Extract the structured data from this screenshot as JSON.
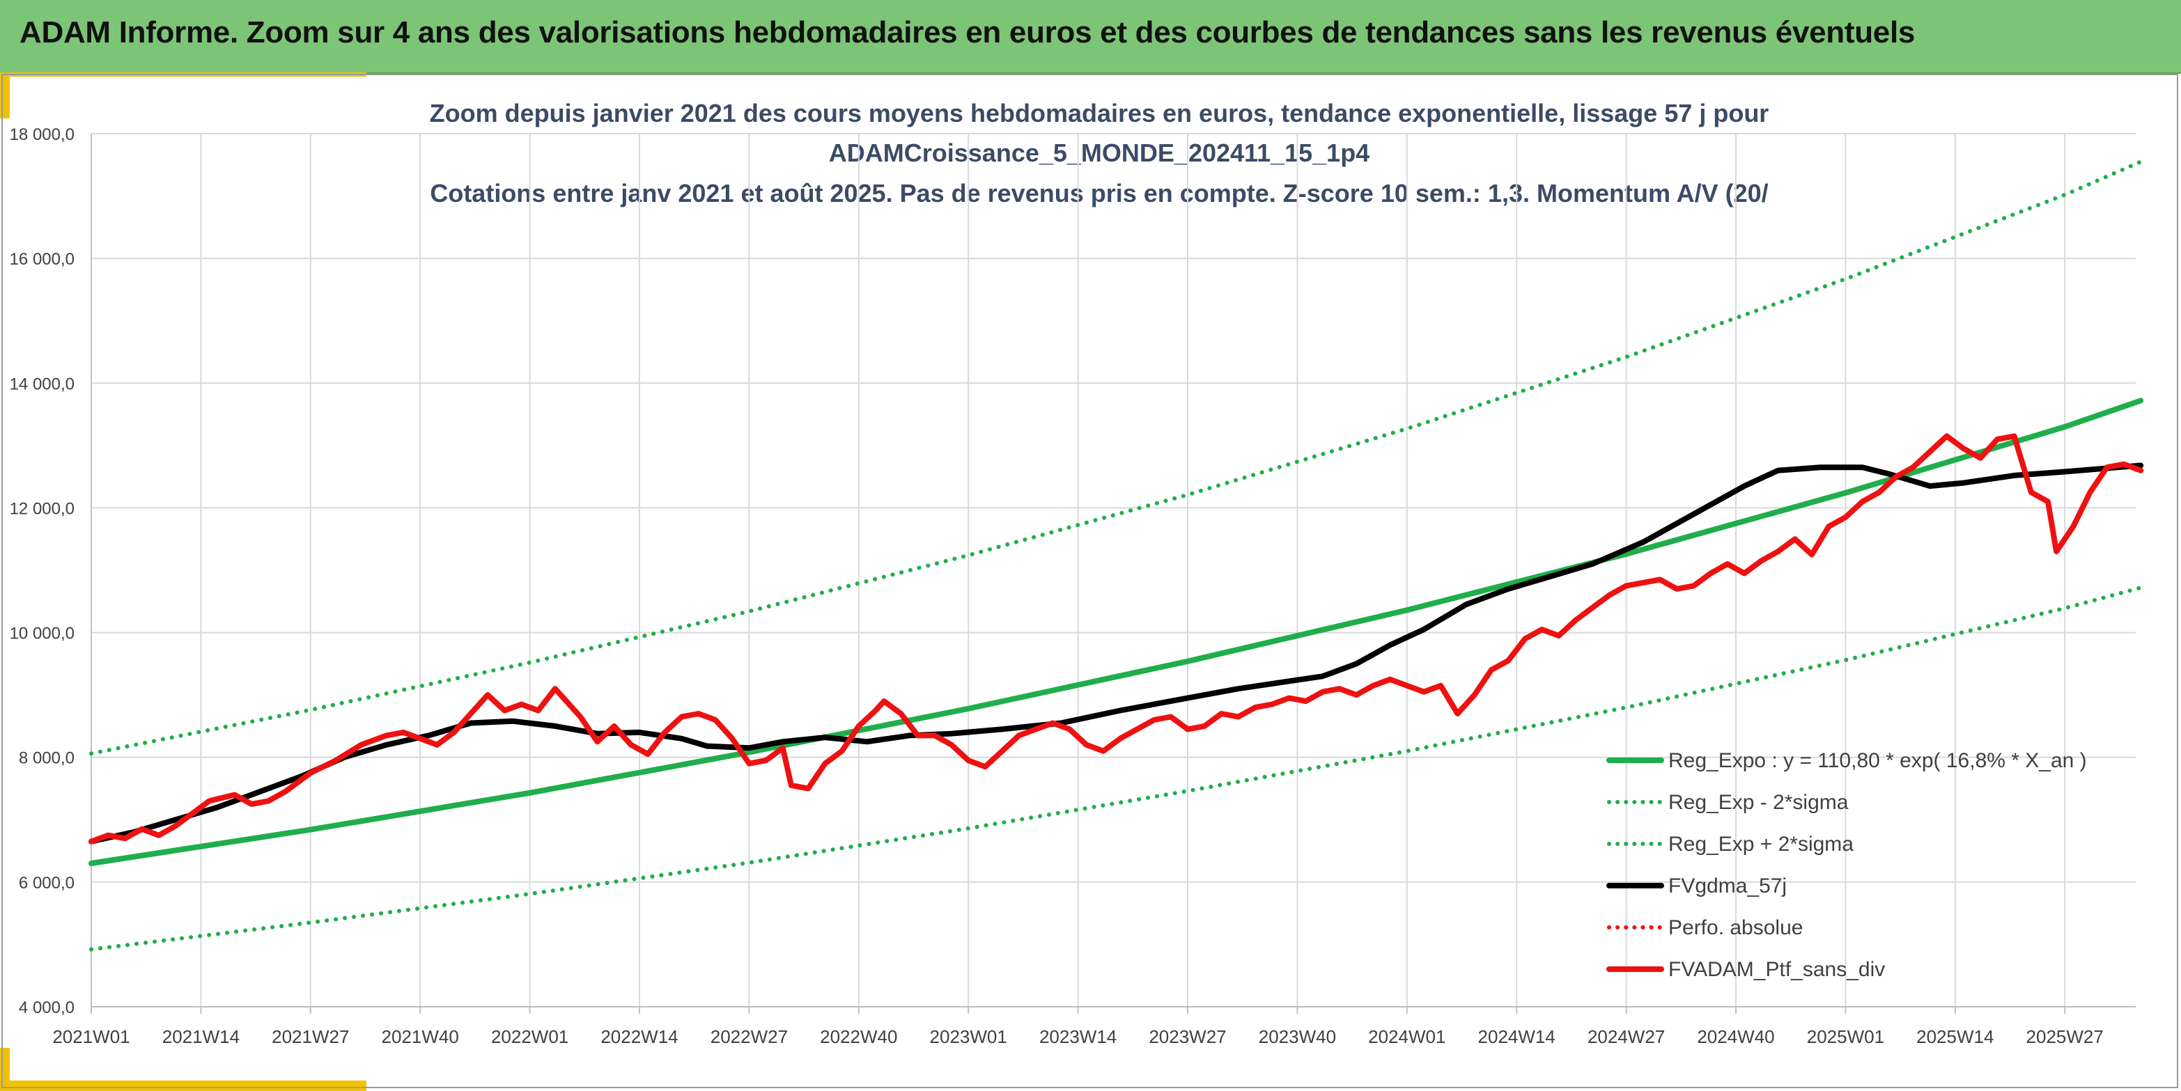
{
  "header": {
    "title": "ADAM Informe. Zoom sur 4 ans des valorisations hebdomadaires en euros et des courbes de tendances sans les revenus éventuels"
  },
  "colors": {
    "header_bg": "#7cc576",
    "accent_yellow": "#f2c200",
    "trend_green": "#1fae4b",
    "series_black": "#000000",
    "series_red": "#ee1111"
  },
  "chart_data": {
    "type": "line",
    "title_lines": [
      "Zoom depuis janvier 2021 des cours moyens hebdomadaires en euros, tendance exponentielle, lissage 57 j pour",
      "ADAMCroissance_5_MONDE_202411_15_1p4",
      "Cotations entre janv 2021 et août 2025. Pas de revenus pris en compte. Z-score 10 sem.: 1,3. Momentum A/V (20/"
    ],
    "xlabel": "",
    "ylabel": "",
    "ylim": [
      4000,
      18000
    ],
    "y_ticks": [
      4000,
      6000,
      8000,
      10000,
      12000,
      14000,
      16000,
      18000
    ],
    "y_tick_labels": [
      "4 000,0",
      "6 000,0",
      "8 000,0",
      "10 000,0",
      "12 000,0",
      "14 000,0",
      "16 000,0",
      "18 000,0"
    ],
    "x_range_weeks": [
      0,
      188
    ],
    "x_ticks": [
      0,
      13,
      26,
      39,
      52,
      65,
      78,
      91,
      104,
      117,
      130,
      143,
      156,
      169,
      182,
      195,
      208,
      221,
      234
    ],
    "x_tick_labels": [
      "2021W01",
      "2021W14",
      "2021W27",
      "2021W40",
      "2022W01",
      "2022W14",
      "2022W27",
      "2022W40",
      "2023W01",
      "2023W14",
      "2023W27",
      "2023W40",
      "2024W01",
      "2024W14",
      "2024W27",
      "2024W40",
      "2025W01",
      "2025W14",
      "2025W27"
    ],
    "grid": true,
    "legend_position": "bottom-right",
    "series": [
      {
        "name": "Reg_Expo : y = 110,80 * exp( 16,8% *  X_an )",
        "color": "#1fae4b",
        "style": "solid",
        "points": [
          [
            0,
            6300
          ],
          [
            26,
            6840
          ],
          [
            52,
            7430
          ],
          [
            78,
            8080
          ],
          [
            104,
            8780
          ],
          [
            130,
            9540
          ],
          [
            156,
            10360
          ],
          [
            182,
            11260
          ],
          [
            208,
            12240
          ],
          [
            234,
            13300
          ],
          [
            243,
            13720
          ]
        ]
      },
      {
        "name": "Reg_Exp - 2*sigma",
        "color": "#1fae4b",
        "style": "dotted",
        "points": [
          [
            0,
            4920
          ],
          [
            26,
            5350
          ],
          [
            52,
            5810
          ],
          [
            78,
            6310
          ],
          [
            104,
            6860
          ],
          [
            130,
            7460
          ],
          [
            156,
            8100
          ],
          [
            182,
            8800
          ],
          [
            208,
            9560
          ],
          [
            234,
            10390
          ],
          [
            243,
            10720
          ]
        ]
      },
      {
        "name": "Reg_Exp + 2*sigma",
        "color": "#1fae4b",
        "style": "dotted",
        "points": [
          [
            0,
            8060
          ],
          [
            26,
            8760
          ],
          [
            52,
            9520
          ],
          [
            78,
            10340
          ],
          [
            104,
            11240
          ],
          [
            130,
            12210
          ],
          [
            156,
            13270
          ],
          [
            182,
            14420
          ],
          [
            208,
            15670
          ],
          [
            234,
            17020
          ],
          [
            243,
            17550
          ]
        ]
      },
      {
        "name": "FVgdma_57j",
        "color": "#000000",
        "style": "solid",
        "points": [
          [
            0,
            6650
          ],
          [
            5,
            6800
          ],
          [
            10,
            7000
          ],
          [
            15,
            7200
          ],
          [
            20,
            7450
          ],
          [
            25,
            7700
          ],
          [
            30,
            8000
          ],
          [
            35,
            8200
          ],
          [
            40,
            8350
          ],
          [
            45,
            8550
          ],
          [
            50,
            8580
          ],
          [
            55,
            8500
          ],
          [
            60,
            8380
          ],
          [
            65,
            8400
          ],
          [
            70,
            8300
          ],
          [
            73,
            8180
          ],
          [
            78,
            8150
          ],
          [
            82,
            8250
          ],
          [
            87,
            8320
          ],
          [
            92,
            8250
          ],
          [
            97,
            8350
          ],
          [
            102,
            8380
          ],
          [
            108,
            8450
          ],
          [
            115,
            8550
          ],
          [
            122,
            8750
          ],
          [
            130,
            8950
          ],
          [
            136,
            9100
          ],
          [
            142,
            9220
          ],
          [
            146,
            9300
          ],
          [
            150,
            9500
          ],
          [
            154,
            9800
          ],
          [
            158,
            10050
          ],
          [
            163,
            10450
          ],
          [
            168,
            10700
          ],
          [
            173,
            10900
          ],
          [
            178,
            11100
          ],
          [
            184,
            11450
          ],
          [
            190,
            11900
          ],
          [
            196,
            12350
          ],
          [
            200,
            12600
          ],
          [
            205,
            12650
          ],
          [
            210,
            12650
          ],
          [
            213,
            12550
          ],
          [
            218,
            12350
          ],
          [
            222,
            12400
          ],
          [
            228,
            12520
          ],
          [
            234,
            12580
          ],
          [
            243,
            12680
          ]
        ]
      },
      {
        "name": "Perfo. absolue",
        "color": "#ee1111",
        "style": "dotted",
        "points": []
      },
      {
        "name": "FVADAM_Ptf_sans_div",
        "color": "#ee1111",
        "style": "solid",
        "points": [
          [
            0,
            6650
          ],
          [
            2,
            6750
          ],
          [
            4,
            6700
          ],
          [
            6,
            6850
          ],
          [
            8,
            6750
          ],
          [
            10,
            6900
          ],
          [
            12,
            7100
          ],
          [
            14,
            7300
          ],
          [
            17,
            7400
          ],
          [
            19,
            7250
          ],
          [
            21,
            7300
          ],
          [
            23,
            7450
          ],
          [
            26,
            7750
          ],
          [
            29,
            7950
          ],
          [
            32,
            8200
          ],
          [
            35,
            8350
          ],
          [
            37,
            8400
          ],
          [
            39,
            8300
          ],
          [
            41,
            8200
          ],
          [
            43,
            8400
          ],
          [
            45,
            8700
          ],
          [
            47,
            9000
          ],
          [
            49,
            8750
          ],
          [
            51,
            8850
          ],
          [
            53,
            8750
          ],
          [
            55,
            9100
          ],
          [
            56,
            8950
          ],
          [
            58,
            8650
          ],
          [
            60,
            8250
          ],
          [
            62,
            8500
          ],
          [
            64,
            8200
          ],
          [
            66,
            8050
          ],
          [
            68,
            8400
          ],
          [
            70,
            8650
          ],
          [
            72,
            8700
          ],
          [
            74,
            8600
          ],
          [
            76,
            8300
          ],
          [
            78,
            7900
          ],
          [
            80,
            7950
          ],
          [
            82,
            8150
          ],
          [
            83,
            7550
          ],
          [
            85,
            7500
          ],
          [
            87,
            7900
          ],
          [
            89,
            8100
          ],
          [
            91,
            8500
          ],
          [
            93,
            8750
          ],
          [
            94,
            8900
          ],
          [
            96,
            8700
          ],
          [
            98,
            8350
          ],
          [
            100,
            8350
          ],
          [
            102,
            8200
          ],
          [
            104,
            7950
          ],
          [
            106,
            7850
          ],
          [
            108,
            8100
          ],
          [
            110,
            8350
          ],
          [
            112,
            8450
          ],
          [
            114,
            8550
          ],
          [
            116,
            8450
          ],
          [
            118,
            8200
          ],
          [
            120,
            8100
          ],
          [
            122,
            8300
          ],
          [
            124,
            8450
          ],
          [
            126,
            8600
          ],
          [
            128,
            8650
          ],
          [
            130,
            8450
          ],
          [
            132,
            8500
          ],
          [
            134,
            8700
          ],
          [
            136,
            8650
          ],
          [
            138,
            8800
          ],
          [
            140,
            8850
          ],
          [
            142,
            8950
          ],
          [
            144,
            8900
          ],
          [
            146,
            9050
          ],
          [
            148,
            9100
          ],
          [
            150,
            9000
          ],
          [
            152,
            9150
          ],
          [
            154,
            9250
          ],
          [
            156,
            9150
          ],
          [
            158,
            9050
          ],
          [
            160,
            9150
          ],
          [
            162,
            8700
          ],
          [
            164,
            9000
          ],
          [
            166,
            9400
          ],
          [
            168,
            9550
          ],
          [
            170,
            9900
          ],
          [
            172,
            10050
          ],
          [
            174,
            9950
          ],
          [
            176,
            10200
          ],
          [
            178,
            10400
          ],
          [
            180,
            10600
          ],
          [
            182,
            10750
          ],
          [
            184,
            10800
          ],
          [
            186,
            10850
          ],
          [
            188,
            10700
          ],
          [
            190,
            10750
          ],
          [
            192,
            10950
          ],
          [
            194,
            11100
          ],
          [
            196,
            10950
          ],
          [
            198,
            11150
          ],
          [
            200,
            11300
          ],
          [
            202,
            11500
          ],
          [
            204,
            11250
          ],
          [
            206,
            11700
          ],
          [
            208,
            11850
          ],
          [
            210,
            12100
          ],
          [
            212,
            12250
          ],
          [
            214,
            12500
          ],
          [
            216,
            12650
          ],
          [
            218,
            12900
          ],
          [
            220,
            13150
          ],
          [
            222,
            12950
          ],
          [
            224,
            12800
          ],
          [
            226,
            13100
          ],
          [
            228,
            13150
          ],
          [
            229,
            12700
          ],
          [
            230,
            12250
          ],
          [
            232,
            12100
          ],
          [
            233,
            11300
          ],
          [
            235,
            11700
          ],
          [
            237,
            12250
          ],
          [
            239,
            12650
          ],
          [
            241,
            12700
          ],
          [
            243,
            12600
          ]
        ]
      }
    ]
  }
}
